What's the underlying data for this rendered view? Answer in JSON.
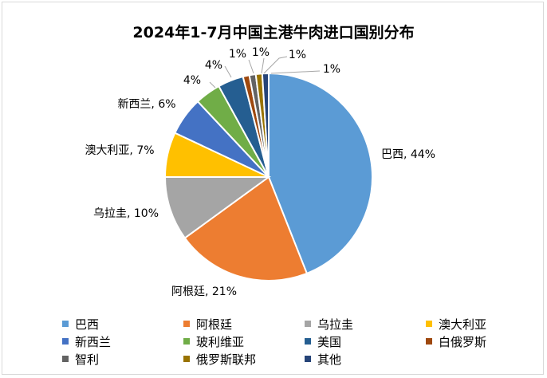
{
  "chart_data": {
    "type": "pie",
    "title": "2024年1-7月中国主港牛肉进口国别分布",
    "start": "top, clockwise",
    "legend_position": "bottom",
    "slices": [
      {
        "name": "巴西",
        "value": 44,
        "label": "巴西, 44%",
        "color": "#5B9BD5"
      },
      {
        "name": "阿根廷",
        "value": 21,
        "label": "阿根廷, 21%",
        "color": "#ED7D31"
      },
      {
        "name": "乌拉圭",
        "value": 10,
        "label": "乌拉圭, 10%",
        "color": "#A5A5A5"
      },
      {
        "name": "澳大利亚",
        "value": 7,
        "label": "澳大利亚, 7%",
        "color": "#FFC000"
      },
      {
        "name": "新西兰",
        "value": 6,
        "label": "新西兰, 6%",
        "color": "#4472C4"
      },
      {
        "name": "玻利维亚",
        "value": 4,
        "label": "4%",
        "color": "#70AD47"
      },
      {
        "name": "美国",
        "value": 4,
        "label": "4%",
        "color": "#255E91"
      },
      {
        "name": "白俄罗斯",
        "value": 1,
        "label": "1%",
        "color": "#9E480E"
      },
      {
        "name": "智利",
        "value": 1,
        "label": "1%",
        "color": "#636363"
      },
      {
        "name": "俄罗斯联邦",
        "value": 1,
        "label": "1%",
        "color": "#997300"
      },
      {
        "name": "其他",
        "value": 1,
        "label": "1%",
        "color": "#264478"
      }
    ]
  }
}
